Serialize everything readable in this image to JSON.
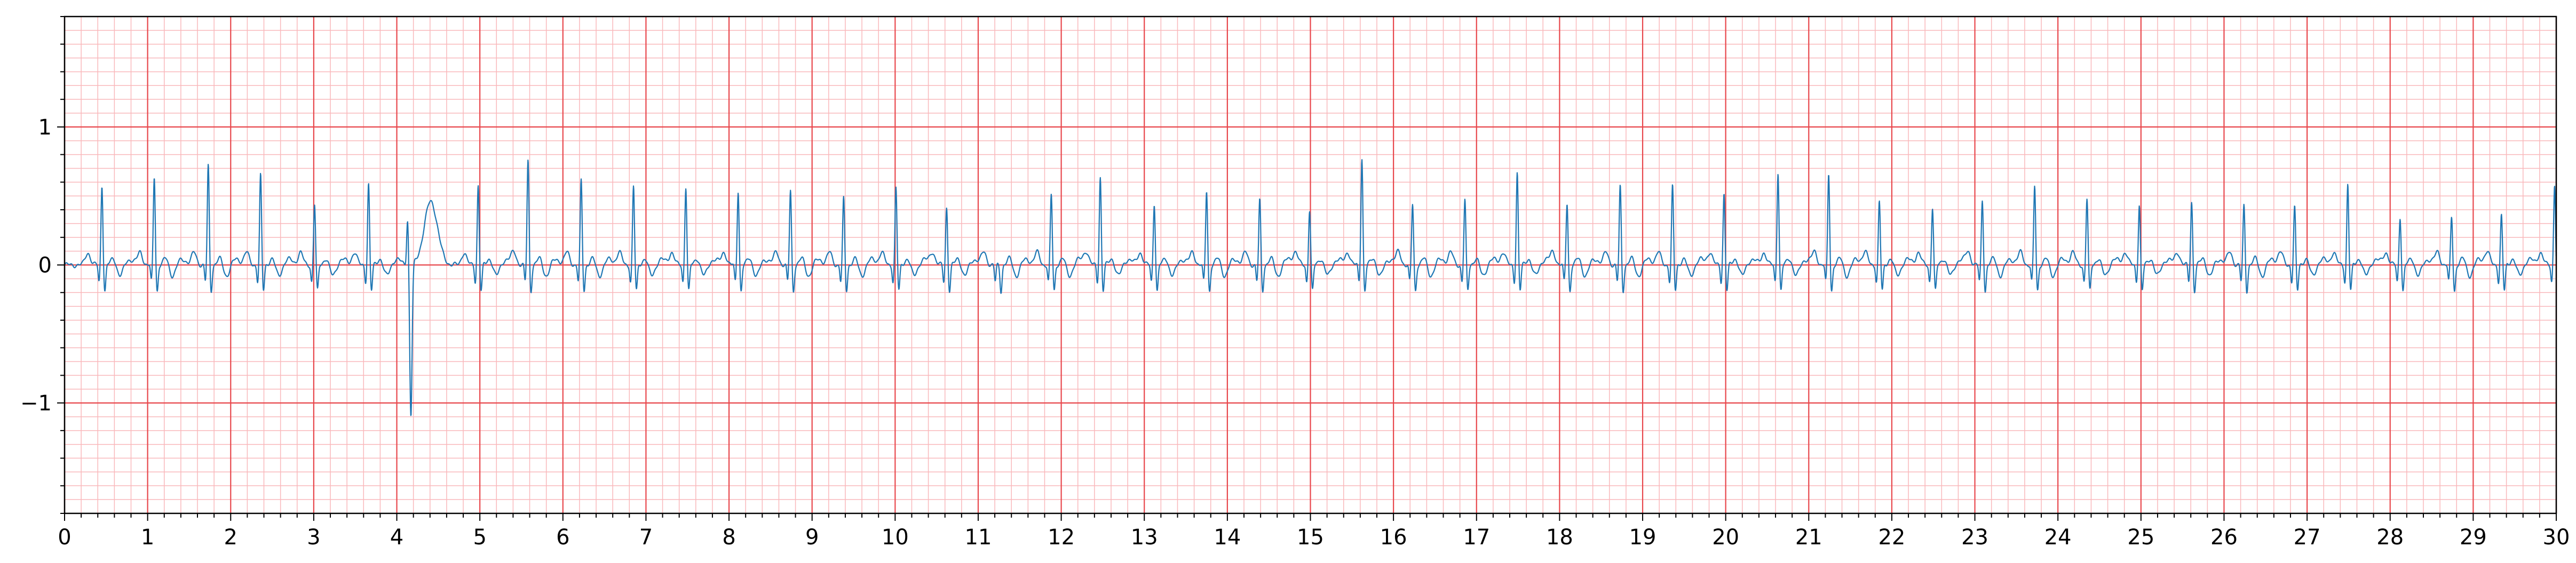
{
  "chart_data": {
    "type": "line",
    "title": "",
    "xlabel": "",
    "ylabel": "",
    "xlim": [
      0,
      30
    ],
    "ylim": [
      -1.8,
      1.8
    ],
    "x_ticks": [
      0,
      1,
      2,
      3,
      4,
      5,
      6,
      7,
      8,
      9,
      10,
      11,
      12,
      13,
      14,
      15,
      16,
      17,
      18,
      19,
      20,
      21,
      22,
      23,
      24,
      25,
      26,
      27,
      28,
      29,
      30
    ],
    "x_tick_labels": [
      "0",
      "1",
      "2",
      "3",
      "4",
      "5",
      "6",
      "7",
      "8",
      "9",
      "10",
      "11",
      "12",
      "13",
      "14",
      "15",
      "16",
      "17",
      "18",
      "19",
      "20",
      "21",
      "22",
      "23",
      "24",
      "25",
      "26",
      "27",
      "28",
      "29",
      "30"
    ],
    "y_ticks": [
      -1,
      0,
      1
    ],
    "y_tick_labels": [
      "−1",
      "0",
      "1"
    ],
    "grid": {
      "major": true,
      "minor": true,
      "major_x_step": 1,
      "minor_x_step": 0.2,
      "major_y_step": 1,
      "minor_y_step": 0.1
    },
    "colors": {
      "major_grid": "#e8474c",
      "minor_grid": "#f9b8bb",
      "line": "#1f77b4",
      "axes": "#000000"
    },
    "legend": "none",
    "series": [
      {
        "beats": [
          {
            "t": 0.45,
            "r": 0.58
          },
          {
            "t": 1.08,
            "r": 0.64
          },
          {
            "t": 1.73,
            "r": 0.72
          },
          {
            "t": 2.36,
            "r": 0.65
          },
          {
            "t": 3.01,
            "r": 0.44
          },
          {
            "t": 3.66,
            "r": 0.59
          },
          {
            "t": 4.13,
            "r": 0.34,
            "s": -1.1
          },
          {
            "t": 4.98,
            "r": 0.58
          },
          {
            "t": 5.58,
            "r": 0.76
          },
          {
            "t": 6.22,
            "r": 0.61
          },
          {
            "t": 6.85,
            "r": 0.57
          },
          {
            "t": 7.48,
            "r": 0.57
          },
          {
            "t": 8.11,
            "r": 0.54
          },
          {
            "t": 8.74,
            "r": 0.54
          },
          {
            "t": 9.38,
            "r": 0.48
          },
          {
            "t": 10.01,
            "r": 0.56
          },
          {
            "t": 10.62,
            "r": 0.42
          },
          {
            "t": 11.24,
            "r": 0.0
          },
          {
            "t": 11.88,
            "r": 0.51
          },
          {
            "t": 12.47,
            "r": 0.64
          },
          {
            "t": 13.12,
            "r": 0.45
          },
          {
            "t": 13.75,
            "r": 0.54
          },
          {
            "t": 14.39,
            "r": 0.47
          },
          {
            "t": 14.99,
            "r": 0.4
          },
          {
            "t": 15.62,
            "r": 0.78
          },
          {
            "t": 16.23,
            "r": 0.44
          },
          {
            "t": 16.86,
            "r": 0.47
          },
          {
            "t": 17.49,
            "r": 0.67
          },
          {
            "t": 18.09,
            "r": 0.45
          },
          {
            "t": 18.73,
            "r": 0.57
          },
          {
            "t": 19.36,
            "r": 0.57
          },
          {
            "t": 19.98,
            "r": 0.52
          },
          {
            "t": 20.63,
            "r": 0.68
          },
          {
            "t": 21.24,
            "r": 0.66
          },
          {
            "t": 21.85,
            "r": 0.46
          },
          {
            "t": 22.49,
            "r": 0.42
          },
          {
            "t": 23.09,
            "r": 0.47
          },
          {
            "t": 23.72,
            "r": 0.57
          },
          {
            "t": 24.35,
            "r": 0.48
          },
          {
            "t": 24.98,
            "r": 0.44
          },
          {
            "t": 25.61,
            "r": 0.46
          },
          {
            "t": 26.24,
            "r": 0.43
          },
          {
            "t": 26.85,
            "r": 0.42
          },
          {
            "t": 27.49,
            "r": 0.59
          },
          {
            "t": 28.12,
            "r": 0.35
          },
          {
            "t": 28.74,
            "r": 0.35
          },
          {
            "t": 29.34,
            "r": 0.36
          },
          {
            "t": 29.98,
            "r": 0.59
          }
        ]
      }
    ]
  }
}
